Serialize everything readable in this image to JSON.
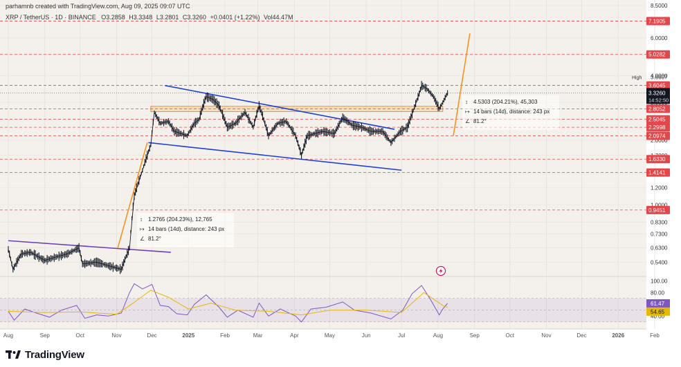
{
  "header": {
    "attribution": "parhamnb created with TradingView.com, Aug 09, 2025 09:07 UTC",
    "symbol": "XRP / TetherUS · 1D · BINANCE",
    "open": "O3.2858",
    "high": "H3.3348",
    "low": "L3.2801",
    "close": "C3.3260",
    "change": "+0.0401 (+1.22%)",
    "volume": "Vol44.47M"
  },
  "footer": {
    "brand": "TradingView"
  },
  "colors": {
    "bg": "#f4f1ec",
    "up": "#131722",
    "level_line": "#e5464a",
    "trend_blue": "#1c3fd6",
    "orange": "#f7931a",
    "purple": "#6a3fb5",
    "rsi_line": "#7e57c2",
    "rsi_ma": "#e6b800"
  },
  "chart_data": {
    "type": "line",
    "title": "XRP / TetherUS · 1D · BINANCE",
    "y_scale": "log",
    "ylim": [
      0.47,
      8.5
    ],
    "x_range": [
      "2024-08-01",
      "2026-02-01"
    ],
    "price_ticks": [
      8.5,
      6.0,
      5.0,
      4.0,
      3.0,
      2.5,
      2.0,
      1.7,
      1.4,
      1.2,
      1.0,
      0.83,
      0.73,
      0.63,
      0.54
    ],
    "price_tick_labels": [
      "8.5000",
      "6.0000",
      "5.0000",
      "4.0000",
      "3.0000",
      "2.5000",
      "2.0000",
      "1.7000",
      "1.4000",
      "1.2000",
      "1.0000",
      "0.8300",
      "0.7300",
      "0.6300",
      "0.5400"
    ],
    "x_ticks": [
      {
        "date": "2024-08-01",
        "label": "Aug"
      },
      {
        "date": "2024-09-01",
        "label": "Sep"
      },
      {
        "date": "2024-10-01",
        "label": "Oct"
      },
      {
        "date": "2024-11-01",
        "label": "Nov"
      },
      {
        "date": "2024-12-01",
        "label": "Dec"
      },
      {
        "date": "2025-01-01",
        "label": "2025"
      },
      {
        "date": "2025-02-01",
        "label": "Feb"
      },
      {
        "date": "2025-03-01",
        "label": "Mar"
      },
      {
        "date": "2025-04-01",
        "label": "Apr"
      },
      {
        "date": "2025-05-01",
        "label": "May"
      },
      {
        "date": "2025-06-01",
        "label": "Jun"
      },
      {
        "date": "2025-07-01",
        "label": "Jul"
      },
      {
        "date": "2025-08-01",
        "label": "Aug"
      },
      {
        "date": "2025-09-01",
        "label": "Sep"
      },
      {
        "date": "2025-10-01",
        "label": "Oct"
      },
      {
        "date": "2025-11-01",
        "label": "Nov"
      },
      {
        "date": "2025-12-01",
        "label": "Dec"
      },
      {
        "date": "2026-01-01",
        "label": "2026"
      },
      {
        "date": "2026-02-01",
        "label": "Feb"
      }
    ],
    "price_path": [
      [
        "2024-08-01",
        0.62
      ],
      [
        "2024-08-05",
        0.5
      ],
      [
        "2024-08-12",
        0.59
      ],
      [
        "2024-08-20",
        0.6
      ],
      [
        "2024-09-01",
        0.55
      ],
      [
        "2024-09-10",
        0.57
      ],
      [
        "2024-09-20",
        0.59
      ],
      [
        "2024-09-30",
        0.63
      ],
      [
        "2024-10-03",
        0.53
      ],
      [
        "2024-10-15",
        0.54
      ],
      [
        "2024-10-25",
        0.52
      ],
      [
        "2024-11-05",
        0.5
      ],
      [
        "2024-11-12",
        0.63
      ],
      [
        "2024-11-16",
        1.1
      ],
      [
        "2024-11-23",
        1.45
      ],
      [
        "2024-11-30",
        1.9
      ],
      [
        "2024-12-03",
        2.7
      ],
      [
        "2024-12-08",
        2.4
      ],
      [
        "2024-12-15",
        2.45
      ],
      [
        "2024-12-20",
        2.2
      ],
      [
        "2024-12-31",
        2.1
      ],
      [
        "2025-01-06",
        2.4
      ],
      [
        "2025-01-10",
        2.5
      ],
      [
        "2025-01-16",
        3.2
      ],
      [
        "2025-01-22",
        3.1
      ],
      [
        "2025-01-27",
        2.9
      ],
      [
        "2025-02-03",
        2.3
      ],
      [
        "2025-02-10",
        2.4
      ],
      [
        "2025-02-18",
        2.7
      ],
      [
        "2025-02-25",
        2.3
      ],
      [
        "2025-03-02",
        2.9
      ],
      [
        "2025-03-10",
        2.1
      ],
      [
        "2025-03-18",
        2.4
      ],
      [
        "2025-03-25",
        2.45
      ],
      [
        "2025-04-02",
        2.1
      ],
      [
        "2025-04-07",
        1.7
      ],
      [
        "2025-04-12",
        2.1
      ],
      [
        "2025-04-25",
        2.2
      ],
      [
        "2025-05-05",
        2.15
      ],
      [
        "2025-05-12",
        2.55
      ],
      [
        "2025-05-20",
        2.35
      ],
      [
        "2025-05-28",
        2.3
      ],
      [
        "2025-06-05",
        2.2
      ],
      [
        "2025-06-15",
        2.2
      ],
      [
        "2025-06-22",
        1.95
      ],
      [
        "2025-06-30",
        2.2
      ],
      [
        "2025-07-06",
        2.3
      ],
      [
        "2025-07-11",
        2.75
      ],
      [
        "2025-07-16",
        3.3
      ],
      [
        "2025-07-18",
        3.6
      ],
      [
        "2025-07-22",
        3.5
      ],
      [
        "2025-07-28",
        3.2
      ],
      [
        "2025-08-02",
        2.8
      ],
      [
        "2025-08-05",
        3.0
      ],
      [
        "2025-08-09",
        3.326
      ]
    ],
    "levels": [
      {
        "price": 7.1905,
        "label": "7.1905"
      },
      {
        "price": 5.0282,
        "label": "5.0282"
      },
      {
        "price": 3.6045,
        "label": "3.6045"
      },
      {
        "price": 2.8052,
        "label": "2.8052"
      },
      {
        "price": 2.5045,
        "label": "2.5045"
      },
      {
        "price": 2.2998,
        "label": "2.2998"
      },
      {
        "price": 2.0974,
        "label": "2.0974"
      },
      {
        "price": 1.633,
        "label": "1.6330"
      },
      {
        "price": 1.4141,
        "label": "1.4141"
      },
      {
        "price": 0.9451,
        "label": "0.9451"
      }
    ],
    "last_price": {
      "label": "3.3260",
      "countdown": "14:52:50"
    },
    "high": {
      "label": "High",
      "value": "3.6607"
    },
    "annotations": [
      {
        "line1": "4.5303 (204.21%), 45,303",
        "line2": "14 bars (14d), distance: 243 px",
        "line3": "81.2°"
      },
      {
        "line1": "1.2765 (204.23%), 12,765",
        "line2": "14 bars (14d), distance: 243 px",
        "line3": "81.2°"
      }
    ],
    "rsi": {
      "ylim": [
        25,
        105
      ],
      "tick_labels": [
        "100.00",
        "80.00",
        "40.00"
      ],
      "ticks": [
        100,
        80,
        40
      ],
      "band": [
        30,
        70
      ],
      "value": "61.47",
      "ma_value": "54.65",
      "path": [
        [
          "2024-08-01",
          48
        ],
        [
          "2024-08-06",
          33
        ],
        [
          "2024-08-15",
          52
        ],
        [
          "2024-08-25",
          45
        ],
        [
          "2024-09-05",
          38
        ],
        [
          "2024-09-15",
          50
        ],
        [
          "2024-09-28",
          58
        ],
        [
          "2024-10-05",
          36
        ],
        [
          "2024-10-15",
          42
        ],
        [
          "2024-10-25",
          40
        ],
        [
          "2024-11-05",
          45
        ],
        [
          "2024-11-12",
          80
        ],
        [
          "2024-11-16",
          95
        ],
        [
          "2024-11-23",
          86
        ],
        [
          "2024-12-01",
          94
        ],
        [
          "2024-12-08",
          58
        ],
        [
          "2024-12-15",
          56
        ],
        [
          "2024-12-22",
          44
        ],
        [
          "2024-12-31",
          42
        ],
        [
          "2025-01-06",
          60
        ],
        [
          "2025-01-16",
          76
        ],
        [
          "2025-01-27",
          55
        ],
        [
          "2025-02-03",
          38
        ],
        [
          "2025-02-12",
          50
        ],
        [
          "2025-02-25",
          38
        ],
        [
          "2025-03-02",
          62
        ],
        [
          "2025-03-10",
          40
        ],
        [
          "2025-03-20",
          52
        ],
        [
          "2025-04-02",
          40
        ],
        [
          "2025-04-07",
          30
        ],
        [
          "2025-04-15",
          52
        ],
        [
          "2025-04-28",
          55
        ],
        [
          "2025-05-12",
          64
        ],
        [
          "2025-05-22",
          50
        ],
        [
          "2025-06-05",
          45
        ],
        [
          "2025-06-22",
          35
        ],
        [
          "2025-07-02",
          50
        ],
        [
          "2025-07-10",
          78
        ],
        [
          "2025-07-18",
          92
        ],
        [
          "2025-07-25",
          70
        ],
        [
          "2025-08-02",
          42
        ],
        [
          "2025-08-05",
          52
        ],
        [
          "2025-08-09",
          61.47
        ]
      ],
      "ma_path": [
        [
          "2024-08-01",
          48
        ],
        [
          "2024-09-01",
          46
        ],
        [
          "2024-10-01",
          47
        ],
        [
          "2024-11-01",
          43
        ],
        [
          "2024-11-15",
          62
        ],
        [
          "2024-11-30",
          84
        ],
        [
          "2024-12-15",
          72
        ],
        [
          "2025-01-01",
          52
        ],
        [
          "2025-01-20",
          62
        ],
        [
          "2025-02-10",
          50
        ],
        [
          "2025-03-10",
          48
        ],
        [
          "2025-04-07",
          42
        ],
        [
          "2025-05-01",
          50
        ],
        [
          "2025-06-01",
          50
        ],
        [
          "2025-07-01",
          46
        ],
        [
          "2025-07-20",
          80
        ],
        [
          "2025-08-05",
          58
        ],
        [
          "2025-08-09",
          54.65
        ]
      ]
    },
    "trendlines": [
      {
        "color": "trend_blue",
        "from": [
          "2024-12-12",
          3.6
        ],
        "to": [
          "2025-06-25",
          2.25
        ]
      },
      {
        "color": "trend_blue",
        "from": [
          "2024-11-28",
          1.95
        ],
        "to": [
          "2025-07-01",
          1.45
        ]
      },
      {
        "color": "purple",
        "from": [
          "2024-08-01",
          0.68
        ],
        "to": [
          "2024-12-17",
          0.6
        ]
      },
      {
        "color": "orange",
        "from": [
          "2024-11-02",
          0.63
        ],
        "to": [
          "2024-11-27",
          1.95
        ]
      },
      {
        "color": "orange",
        "from": [
          "2025-08-14",
          2.1
        ],
        "to": [
          "2025-08-28",
          6.3
        ]
      }
    ],
    "zone": {
      "from": "2024-11-30",
      "to": "2025-08-05",
      "low": 2.72,
      "high": 2.88
    }
  }
}
